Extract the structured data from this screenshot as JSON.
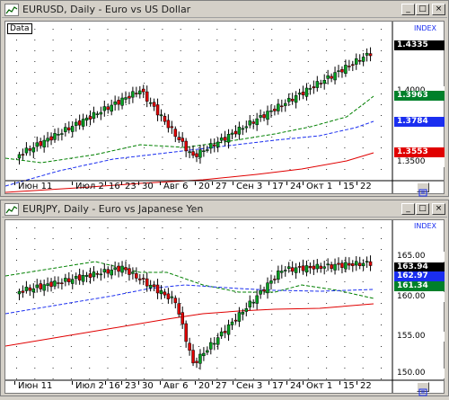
{
  "windows": [
    {
      "title": "EURUSD, Daily - Euro vs US Dollar",
      "data_label": "Data",
      "index_label": "INDEX",
      "prices": [
        {
          "label": "1.4335",
          "bg": "#000000",
          "fg": "#ffffff"
        },
        {
          "label": "1.4000",
          "bg": "#ffffff",
          "fg": "#000000"
        },
        {
          "label": "1.3963",
          "bg": "#00802a",
          "fg": "#ffffff"
        },
        {
          "label": "1.3784",
          "bg": "#1a2ef0",
          "fg": "#ffffff"
        },
        {
          "label": "1.3553",
          "bg": "#e00000",
          "fg": "#ffffff"
        },
        {
          "label": "1.3500",
          "bg": "#ffffff",
          "fg": "#000000"
        }
      ],
      "dates": [
        "Июн 11",
        "Июл 2",
        "16",
        "23",
        "30",
        "Авг 6",
        "20",
        "27",
        "Сен 3",
        "17",
        "24",
        "Окт 1",
        "15",
        "22"
      ]
    },
    {
      "title": "EURJPY, Daily - Euro vs Japanese Yen",
      "index_label": "INDEX",
      "prices": [
        {
          "label": "165.00",
          "bg": "#ffffff",
          "fg": "#000000"
        },
        {
          "label": "163.94",
          "bg": "#000000",
          "fg": "#ffffff"
        },
        {
          "label": "162.97",
          "bg": "#1a2ef0",
          "fg": "#ffffff"
        },
        {
          "label": "161.34",
          "bg": "#00802a",
          "fg": "#ffffff"
        },
        {
          "label": "160.00",
          "bg": "#ffffff",
          "fg": "#000000"
        },
        {
          "label": "155.00",
          "bg": "#ffffff",
          "fg": "#000000"
        },
        {
          "label": "150.00",
          "bg": "#ffffff",
          "fg": "#000000"
        }
      ],
      "dates": [
        "Июн 11",
        "Июл 2",
        "16",
        "23",
        "30",
        "Авг 6",
        "20",
        "27",
        "Сен 3",
        "17",
        "24",
        "Окт 1",
        "15",
        "22"
      ]
    }
  ],
  "controls": {
    "minimize": "_",
    "maximize": "□",
    "close": "×",
    "scale_icon": "scale-icon"
  },
  "colors": {
    "bull": "#00a020",
    "bear": "#e00000",
    "ma_green": "#008000",
    "ma_blue": "#1a2ef0",
    "ma_red": "#e00000"
  }
}
